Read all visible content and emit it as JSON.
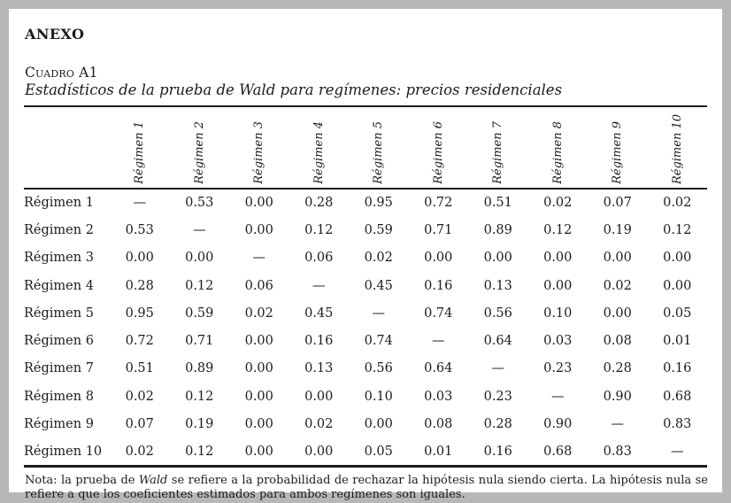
{
  "page": {
    "section_title": "ANEXO",
    "table_label": "Cuadro A1",
    "table_title": "Estadísticos de la prueba de Wald para regímenes: precios residenciales"
  },
  "table": {
    "column_headers": [
      "Régimen 1",
      "Régimen 2",
      "Régimen 3",
      "Régimen 4",
      "Régimen 5",
      "Régimen 6",
      "Régimen 7",
      "Régimen 8",
      "Régimen 9",
      "Régimen 10"
    ],
    "rows": [
      {
        "label": "Régimen 1",
        "values": [
          "—",
          "0.53",
          "0.00",
          "0.28",
          "0.95",
          "0.72",
          "0.51",
          "0.02",
          "0.07",
          "0.02"
        ]
      },
      {
        "label": "Régimen 2",
        "values": [
          "0.53",
          "—",
          "0.00",
          "0.12",
          "0.59",
          "0.71",
          "0.89",
          "0.12",
          "0.19",
          "0.12"
        ]
      },
      {
        "label": "Régimen 3",
        "values": [
          "0.00",
          "0.00",
          "—",
          "0.06",
          "0.02",
          "0.00",
          "0.00",
          "0.00",
          "0.00",
          "0.00"
        ]
      },
      {
        "label": "Régimen 4",
        "values": [
          "0.28",
          "0.12",
          "0.06",
          "—",
          "0.45",
          "0.16",
          "0.13",
          "0.00",
          "0.02",
          "0.00"
        ]
      },
      {
        "label": "Régimen 5",
        "values": [
          "0.95",
          "0.59",
          "0.02",
          "0.45",
          "—",
          "0.74",
          "0.56",
          "0.10",
          "0.00",
          "0.05"
        ]
      },
      {
        "label": "Régimen 6",
        "values": [
          "0.72",
          "0.71",
          "0.00",
          "0.16",
          "0.74",
          "—",
          "0.64",
          "0.03",
          "0.08",
          "0.01"
        ]
      },
      {
        "label": "Régimen 7",
        "values": [
          "0.51",
          "0.89",
          "0.00",
          "0.13",
          "0.56",
          "0.64",
          "—",
          "0.23",
          "0.28",
          "0.16"
        ]
      },
      {
        "label": "Régimen 8",
        "values": [
          "0.02",
          "0.12",
          "0.00",
          "0.00",
          "0.10",
          "0.03",
          "0.23",
          "—",
          "0.90",
          "0.68"
        ]
      },
      {
        "label": "Régimen 9",
        "values": [
          "0.07",
          "0.19",
          "0.00",
          "0.02",
          "0.00",
          "0.08",
          "0.28",
          "0.90",
          "—",
          "0.83"
        ]
      },
      {
        "label": "Régimen 10",
        "values": [
          "0.02",
          "0.12",
          "0.00",
          "0.00",
          "0.05",
          "0.01",
          "0.16",
          "0.68",
          "0.83",
          "—"
        ]
      }
    ]
  },
  "note": {
    "prefix": "Nota: la prueba de ",
    "italic_term": "Wald",
    "suffix": " se refiere a la probabilidad de rechazar la hipótesis nula siendo cierta. La hipótesis nula se refiere a que los coeficientes estimados para ambos regímenes son iguales."
  },
  "colors": {
    "background": "#b7b7b9",
    "page": "#ffffff",
    "text": "#1c1c1e",
    "rule": "#1c1c1e"
  }
}
